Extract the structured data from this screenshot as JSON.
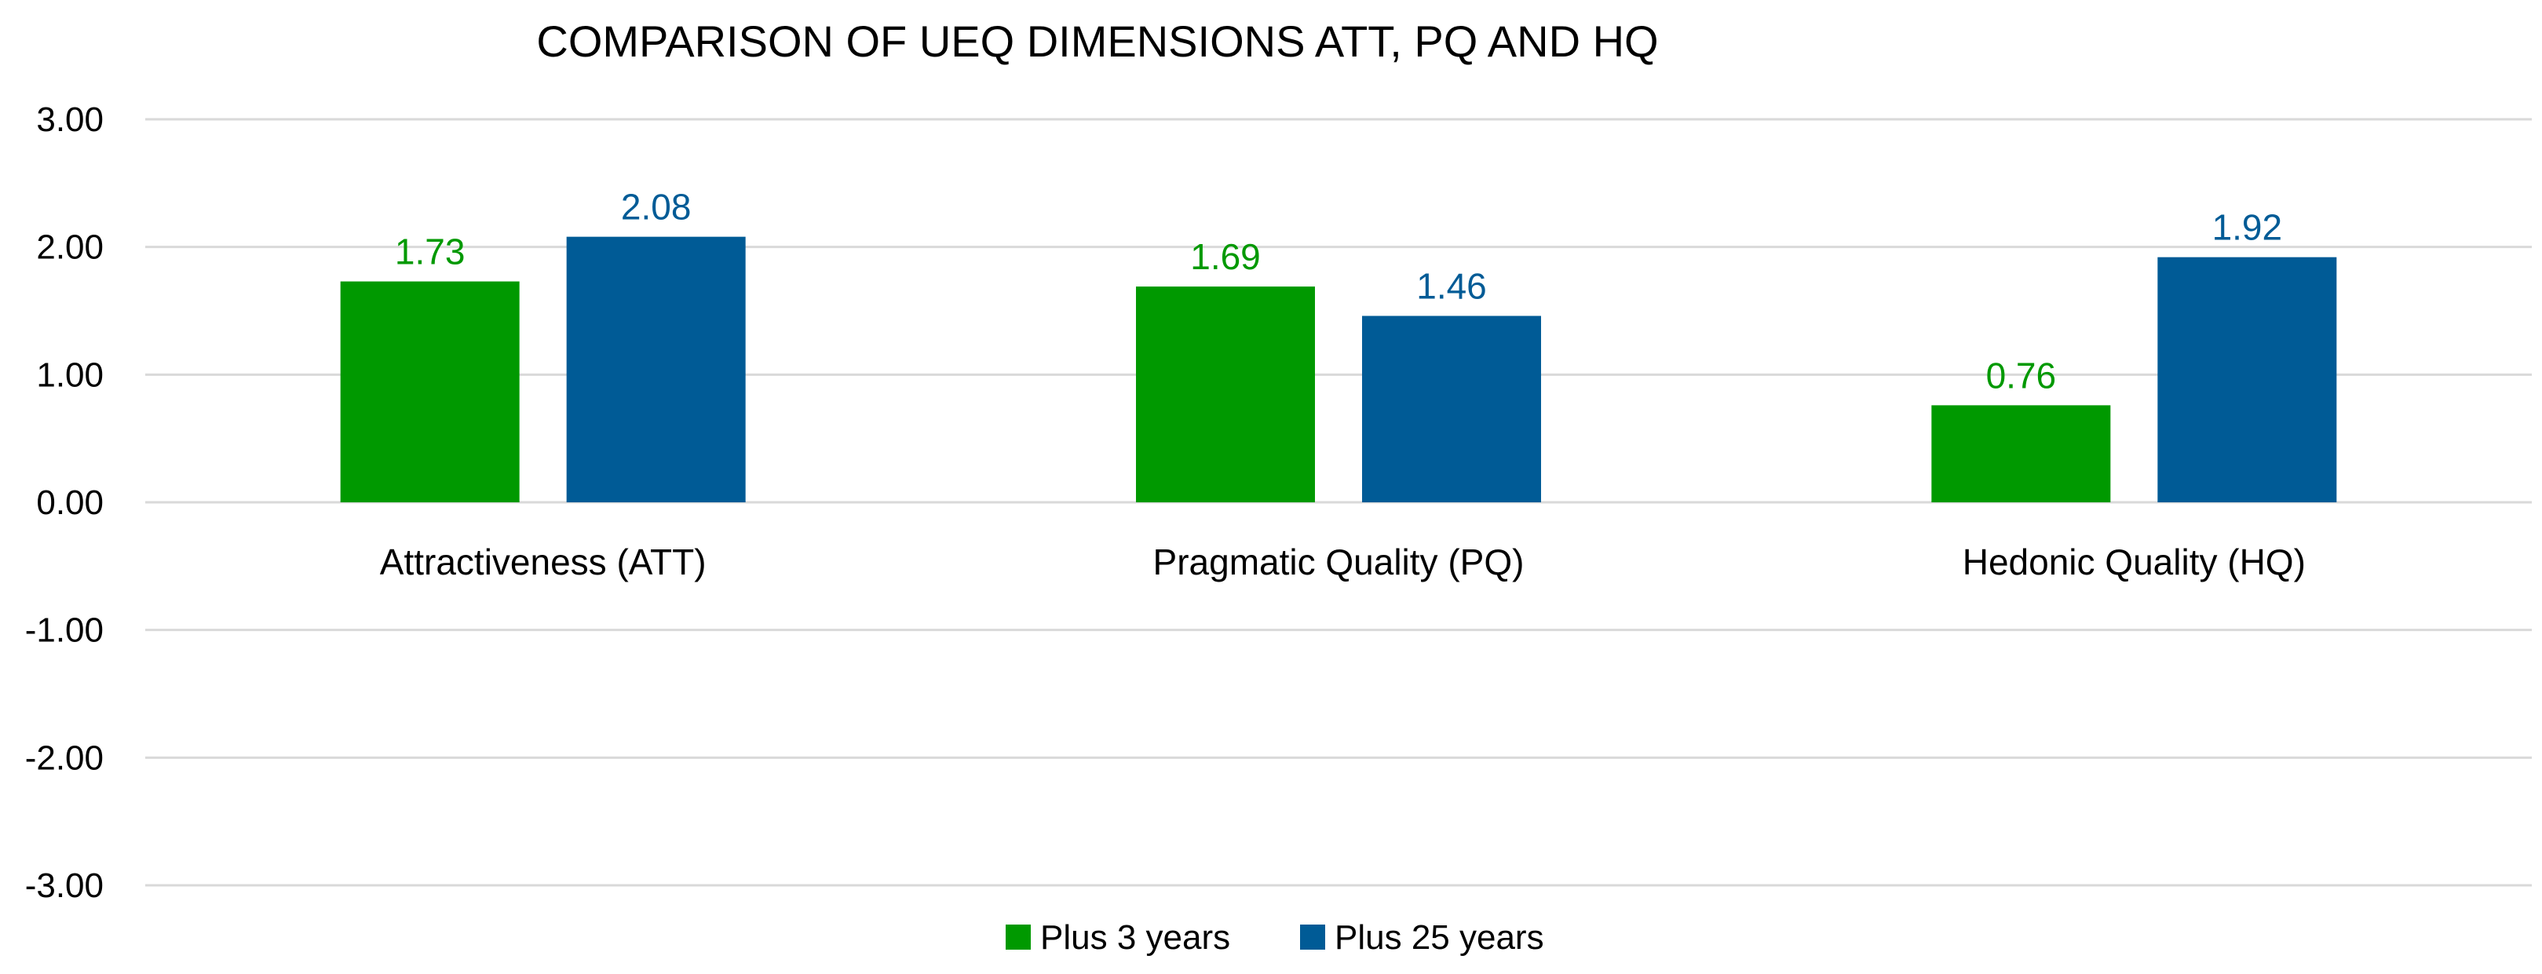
{
  "chart_data": {
    "type": "bar",
    "title": "COMPARISON OF UEQ DIMENSIONS ATT, PQ AND HQ",
    "xlabel": "",
    "ylabel": "",
    "categories": [
      "Attractiveness (ATT)",
      "Pragmatic Quality (PQ)",
      "Hedonic Quality (HQ)"
    ],
    "series": [
      {
        "name": "Plus 3 years",
        "color": "#009900",
        "values": [
          1.73,
          1.69,
          0.76
        ],
        "labels": [
          "1.73",
          "1.69",
          "0.76"
        ]
      },
      {
        "name": "Plus 25 years",
        "color": "#005b96",
        "values": [
          2.08,
          1.46,
          1.92
        ],
        "labels": [
          "2.08",
          "1.46",
          "1.92"
        ]
      }
    ],
    "ylim": [
      -3,
      3
    ],
    "yticks": [
      3,
      2,
      1,
      0,
      -1,
      -2,
      -3
    ],
    "ytick_labels": [
      "3.00",
      "2.00",
      "1.00",
      "0.00",
      "-1.00",
      "-2.00",
      "-3.00"
    ],
    "grid": true,
    "legend": "bottom-center"
  }
}
